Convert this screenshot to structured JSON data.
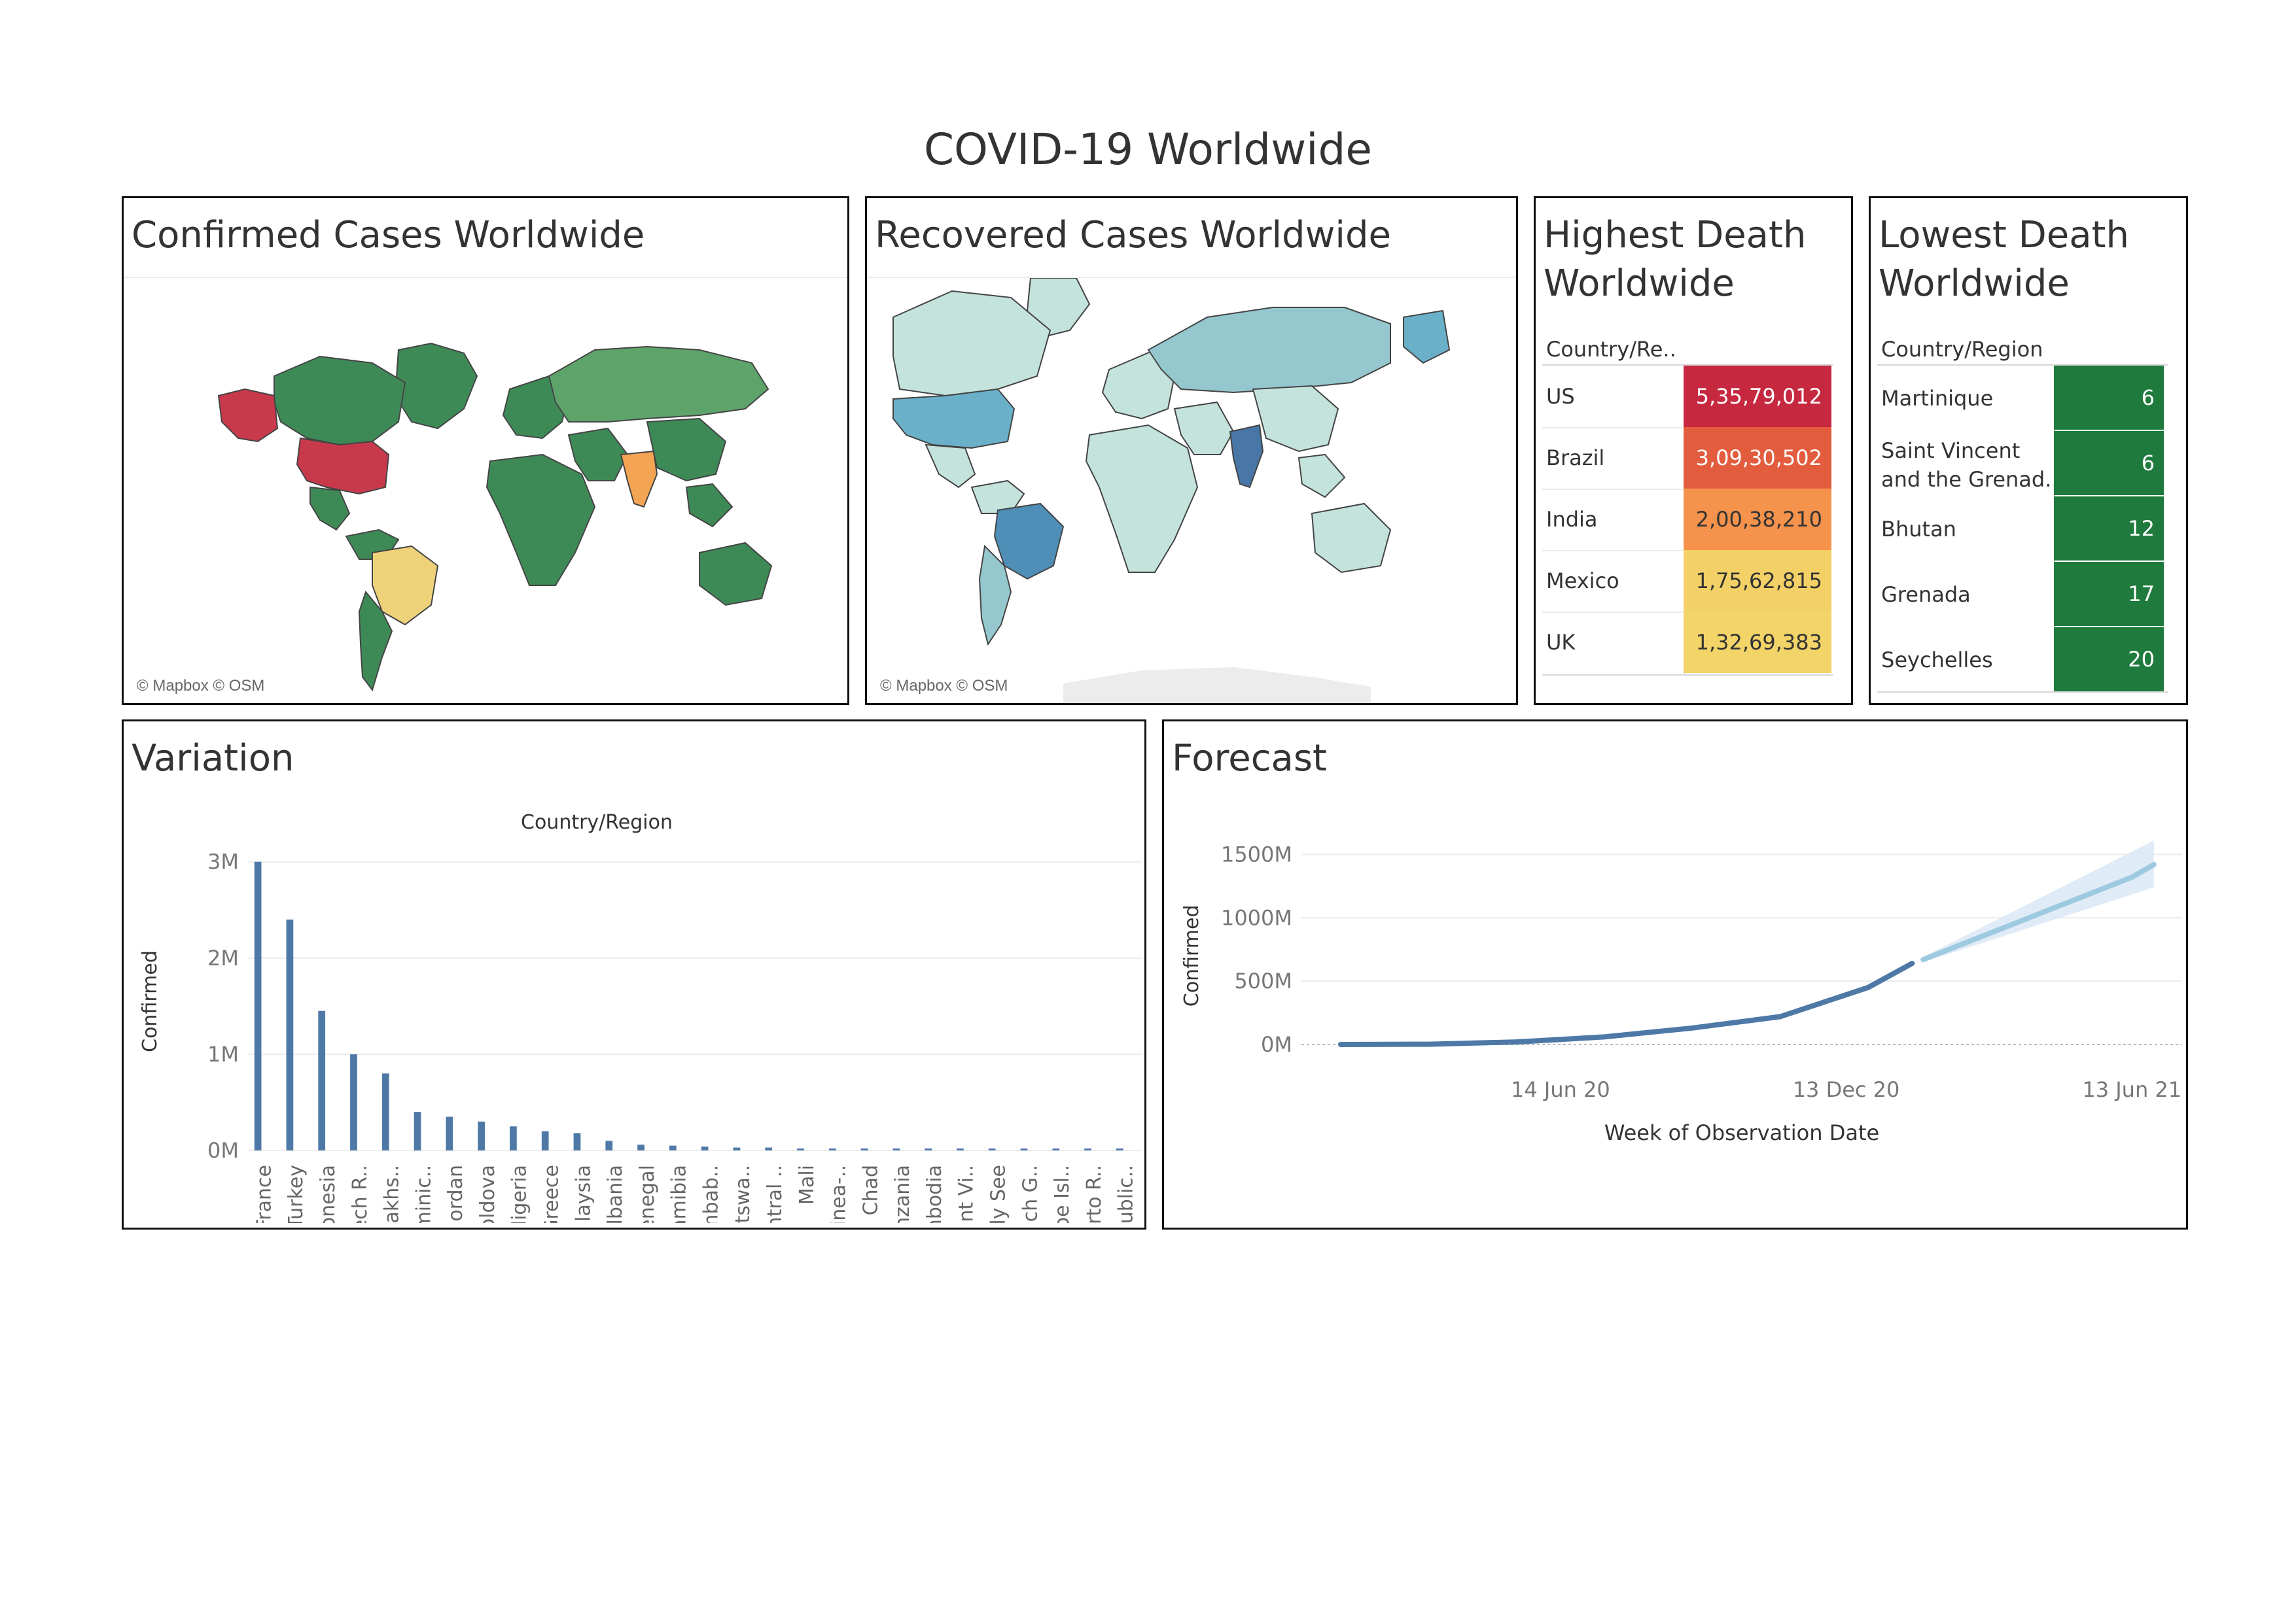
{
  "dashboard": {
    "title": "COVID-19 Worldwide"
  },
  "confirmed_map": {
    "title": "Confirmed Cases Worldwide",
    "attribution": "© Mapbox © OSM",
    "colors": {
      "low": "#3e8a57",
      "us": "#c9394c",
      "brazil": "#edd27a",
      "india": "#f3a553",
      "russia": "#5ea46a",
      "border": "#444444"
    }
  },
  "recovered_map": {
    "title": "Recovered Cases Worldwide",
    "attribution": "© Mapbox © OSM",
    "colors": {
      "low": "#c3e3dc",
      "mid": "#95c7cf",
      "us": "#6ab0c8",
      "brazil": "#4f8fb7",
      "india": "#4877a7",
      "border": "#444444"
    }
  },
  "highest_death": {
    "title_line1": "Highest Death",
    "title_line2": "Worldwide",
    "column_header": "Country/Re..",
    "rows": [
      {
        "country": "US",
        "value": "5,35,79,012",
        "color": "#c6283f",
        "text_color": "#ffffff"
      },
      {
        "country": "Brazil",
        "value": "3,09,30,502",
        "color": "#e35c3e",
        "text_color": "#ffffff"
      },
      {
        "country": "India",
        "value": "2,00,38,210",
        "color": "#f5924b",
        "text_color": "#333333"
      },
      {
        "country": "Mexico",
        "value": "1,75,62,815",
        "color": "#f3d166",
        "text_color": "#333333"
      },
      {
        "country": "UK",
        "value": "1,32,69,383",
        "color": "#f2d468",
        "text_color": "#333333"
      }
    ]
  },
  "lowest_death": {
    "title_line1": "Lowest Death",
    "title_line2": "Worldwide",
    "column_header": "Country/Region",
    "cell_color": "#1e7b3d",
    "rows": [
      {
        "country_line1": "Martinique",
        "country_line2": "",
        "value": "6"
      },
      {
        "country_line1": "Saint Vincent",
        "country_line2": "and the Grenad..",
        "value": "6"
      },
      {
        "country_line1": "Bhutan",
        "country_line2": "",
        "value": "12"
      },
      {
        "country_line1": "Grenada",
        "country_line2": "",
        "value": "17"
      },
      {
        "country_line1": "Seychelles",
        "country_line2": "",
        "value": "20"
      }
    ]
  },
  "chart_data": [
    {
      "type": "bar",
      "panel_title": "Variation",
      "title": "Country/Region",
      "ylabel": "Confirmed",
      "y_ticks": [
        "0M",
        "1M",
        "2M",
        "3M"
      ],
      "ylim": [
        0,
        3.1
      ],
      "y_unit": "M",
      "color": "#4e79a7",
      "categories": [
        "France",
        "Turkey",
        "Indonesia",
        "Czech R..",
        "Kazakhs..",
        "Dominic..",
        "Jordan",
        "Moldova",
        "Nigeria",
        "Greece",
        "Malaysia",
        "Albania",
        "Senegal",
        "Namibia",
        "Zimbab..",
        "Botswa..",
        "Central ..",
        "Mali",
        "Guinea-..",
        "Chad",
        "Tanzania",
        "Cambodia",
        "Saint Vi..",
        "Holy See",
        "French G..",
        "Faroe Isl..",
        "Puerto R..",
        "Republic.."
      ],
      "values": [
        3.0,
        2.4,
        1.45,
        1.0,
        0.8,
        0.4,
        0.35,
        0.3,
        0.25,
        0.2,
        0.18,
        0.1,
        0.06,
        0.05,
        0.04,
        0.03,
        0.03,
        0.02,
        0.02,
        0.02,
        0.02,
        0.02,
        0.02,
        0.02,
        0.02,
        0.02,
        0.02,
        0.02
      ]
    },
    {
      "type": "line",
      "panel_title": "Forecast",
      "xlabel": "Week of Observation Date",
      "ylabel": "Confirmed",
      "x_ticks": [
        "14 Jun 20",
        "13 Dec 20",
        "13 Jun 21"
      ],
      "y_ticks": [
        "0M",
        "500M",
        "1000M",
        "1500M"
      ],
      "ylim": [
        0,
        1600
      ],
      "y_unit": "M",
      "series": [
        {
          "kind": "actual",
          "color": "#4e79a7",
          "x": [
            "2020-01-26",
            "2020-03-22",
            "2020-05-17",
            "2020-07-12",
            "2020-09-06",
            "2020-11-01",
            "2020-12-27",
            "2021-01-24"
          ],
          "y": [
            0,
            2,
            20,
            60,
            130,
            220,
            450,
            640
          ]
        },
        {
          "kind": "forecast",
          "color": "#9ecae1",
          "x": [
            "2021-01-31",
            "2021-06-13",
            "2021-06-27"
          ],
          "y": [
            670,
            1320,
            1420
          ]
        },
        {
          "kind": "forecast_upper",
          "color": "#dbe9f6",
          "x": [
            "2021-01-31",
            "2021-06-27"
          ],
          "y": [
            690,
            1610
          ]
        },
        {
          "kind": "forecast_lower",
          "color": "#dbe9f6",
          "x": [
            "2021-01-31",
            "2021-06-27"
          ],
          "y": [
            650,
            1240
          ]
        }
      ]
    }
  ]
}
